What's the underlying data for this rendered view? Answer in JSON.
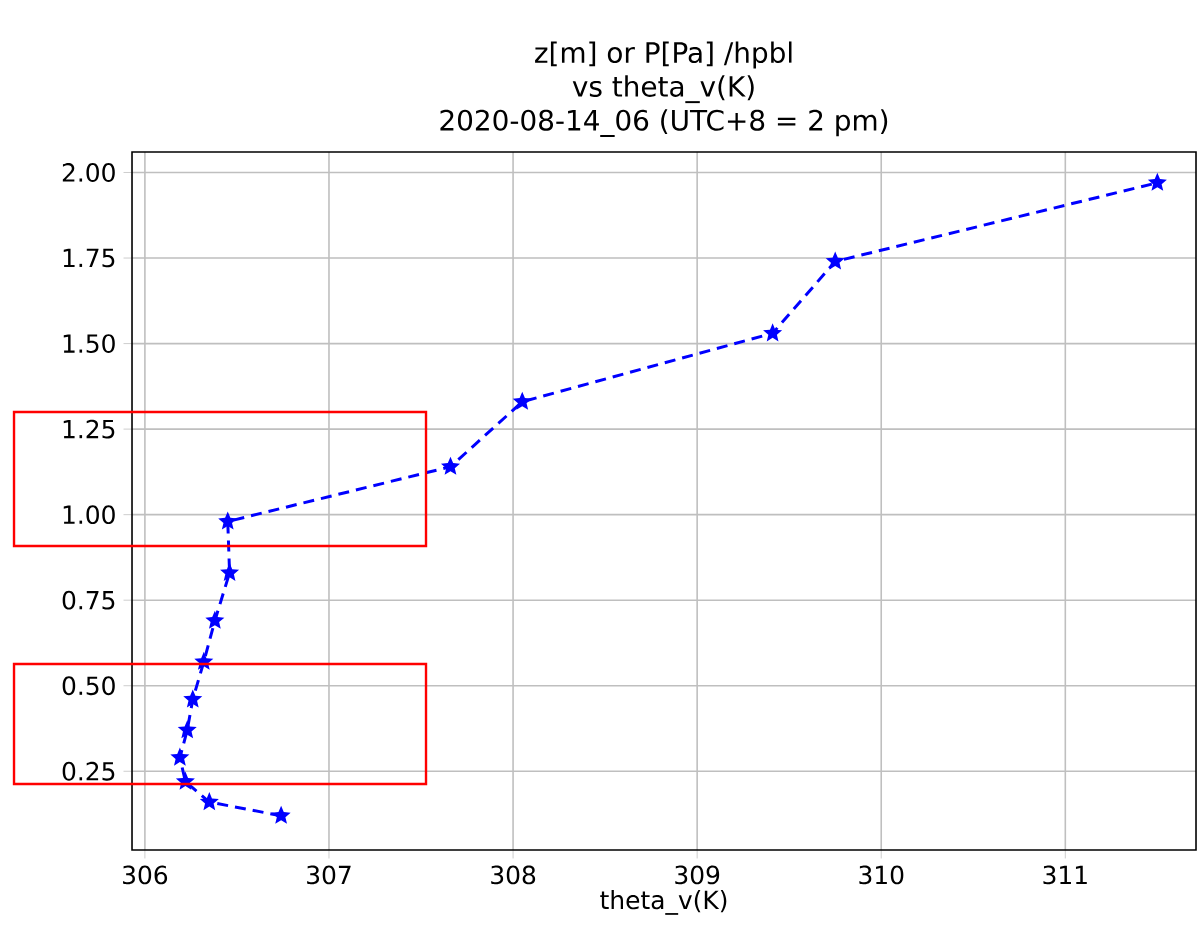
{
  "chart_data": {
    "type": "line",
    "title": "z[m] or P[Pa] /hpbl\nvs theta_v(K)\n2020-08-14_06 (UTC+8 = 2 pm)",
    "xlabel": "theta_v(K)",
    "series": [
      {
        "color": "#0000ff",
        "x": [
          306.74,
          306.35,
          306.22,
          306.19,
          306.23,
          306.26,
          306.32,
          306.38,
          306.46,
          306.45,
          307.66,
          308.05,
          309.41,
          309.75,
          311.5
        ],
        "values": [
          0.12,
          0.16,
          0.22,
          0.29,
          0.37,
          0.46,
          0.57,
          0.69,
          0.83,
          0.98,
          1.14,
          1.33,
          1.53,
          1.74,
          1.97
        ]
      }
    ],
    "xlim": [
      305.93,
      311.71
    ],
    "xticks": [
      306,
      307,
      308,
      309,
      310,
      311
    ],
    "ylim": [
      0.02,
      2.06
    ],
    "yticks": [
      {
        "value": 0.25,
        "label": "0.25"
      },
      {
        "value": 0.5,
        "label": "0.50"
      },
      {
        "value": 0.75,
        "label": "0.75"
      },
      {
        "value": 1.0,
        "label": "1.00"
      },
      {
        "value": 1.25,
        "label": "1.25"
      },
      {
        "value": 1.5,
        "label": "1.50"
      },
      {
        "value": 1.75,
        "label": "1.75"
      },
      {
        "value": 2.0,
        "label": "2.00"
      }
    ],
    "grid": true,
    "marker": "star",
    "line_style": "dashed"
  }
}
